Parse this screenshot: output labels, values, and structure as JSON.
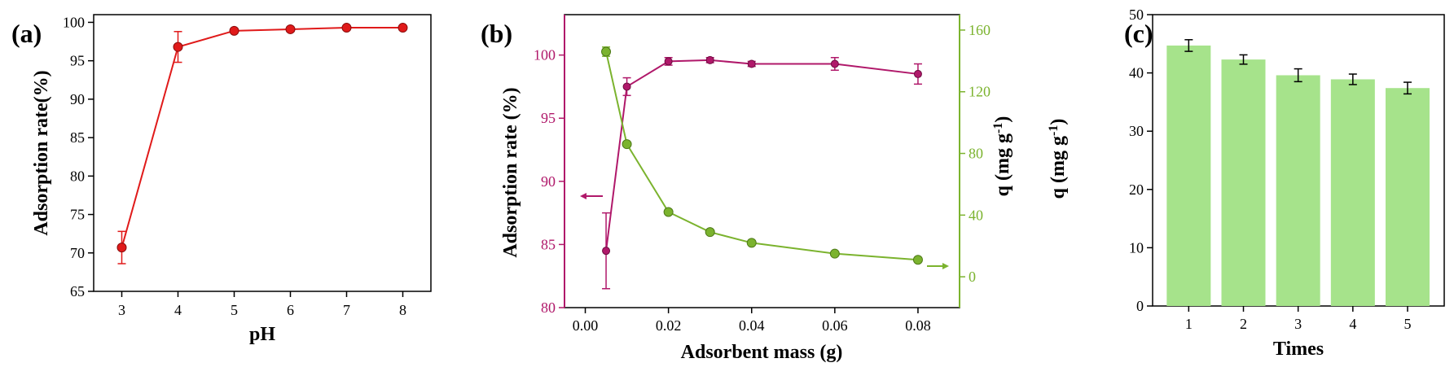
{
  "chart_data": [
    {
      "type": "line",
      "panel_label": "(a)",
      "title": "",
      "xlabel": "pH",
      "ylabel": "Adsorption rate(%)",
      "xlim": [
        2.5,
        8.5
      ],
      "ylim": [
        65,
        101
      ],
      "xticks": [
        3,
        4,
        5,
        6,
        7,
        8
      ],
      "yticks": [
        65,
        70,
        75,
        80,
        85,
        90,
        95,
        100
      ],
      "color": "#e01a1a",
      "series": [
        {
          "name": "Adsorption rate",
          "x": [
            3,
            4,
            5,
            6,
            7,
            8
          ],
          "values": [
            70.7,
            96.8,
            98.9,
            99.1,
            99.3,
            99.3
          ],
          "errors": [
            2.1,
            2.0,
            0.3,
            0.3,
            0.3,
            0.3
          ]
        }
      ]
    },
    {
      "type": "line",
      "panel_label": "(b)",
      "title": "",
      "xlabel": "Adsorbent mass (g)",
      "ylabel": "Adsorption rate (%)",
      "ylabel_right": "q (mg g",
      "ylabel_right_sup": "-1",
      "ylabel_right_close": ")",
      "xlim": [
        -0.005,
        0.09
      ],
      "ylim": [
        80,
        103.2
      ],
      "ylim_right": [
        -20,
        170
      ],
      "xticks": [
        0.0,
        0.02,
        0.04,
        0.06,
        0.08
      ],
      "xtick_labels": [
        "0.00",
        "0.02",
        "0.04",
        "0.06",
        "0.08"
      ],
      "yticks": [
        80,
        85,
        90,
        95,
        100
      ],
      "yticks_right": [
        0,
        40,
        80,
        120,
        160
      ],
      "colors": {
        "left": "#b0186a",
        "right": "#7bb32e"
      },
      "series": [
        {
          "name": "Adsorption rate",
          "axis": "left",
          "x": [
            0.005,
            0.01,
            0.02,
            0.03,
            0.04,
            0.06,
            0.08
          ],
          "values": [
            84.5,
            97.5,
            99.5,
            99.6,
            99.3,
            99.3,
            98.5
          ],
          "errors": [
            3.0,
            0.7,
            0.3,
            0.2,
            0.2,
            0.5,
            0.8
          ]
        },
        {
          "name": "q",
          "axis": "right",
          "x": [
            0.005,
            0.01,
            0.02,
            0.03,
            0.04,
            0.06,
            0.08
          ],
          "values": [
            146,
            86,
            42,
            29,
            22,
            15,
            11
          ],
          "errors": [
            3,
            0,
            0,
            0,
            0,
            0,
            0
          ]
        }
      ],
      "annotations": [
        "left-arrow",
        "right-arrow"
      ]
    },
    {
      "type": "bar",
      "panel_label": "(c)",
      "title": "",
      "xlabel": "Times",
      "ylabel": "q (mg g",
      "ylabel_sup": "-1",
      "ylabel_close": ")",
      "ylim": [
        0,
        50
      ],
      "yticks": [
        0,
        10,
        20,
        30,
        40,
        50
      ],
      "color": "#a6e38b",
      "categories": [
        "1",
        "2",
        "3",
        "4",
        "5"
      ],
      "values": [
        44.7,
        42.3,
        39.6,
        38.9,
        37.4
      ],
      "errors": [
        1.0,
        0.8,
        1.1,
        0.9,
        1.0
      ]
    }
  ]
}
